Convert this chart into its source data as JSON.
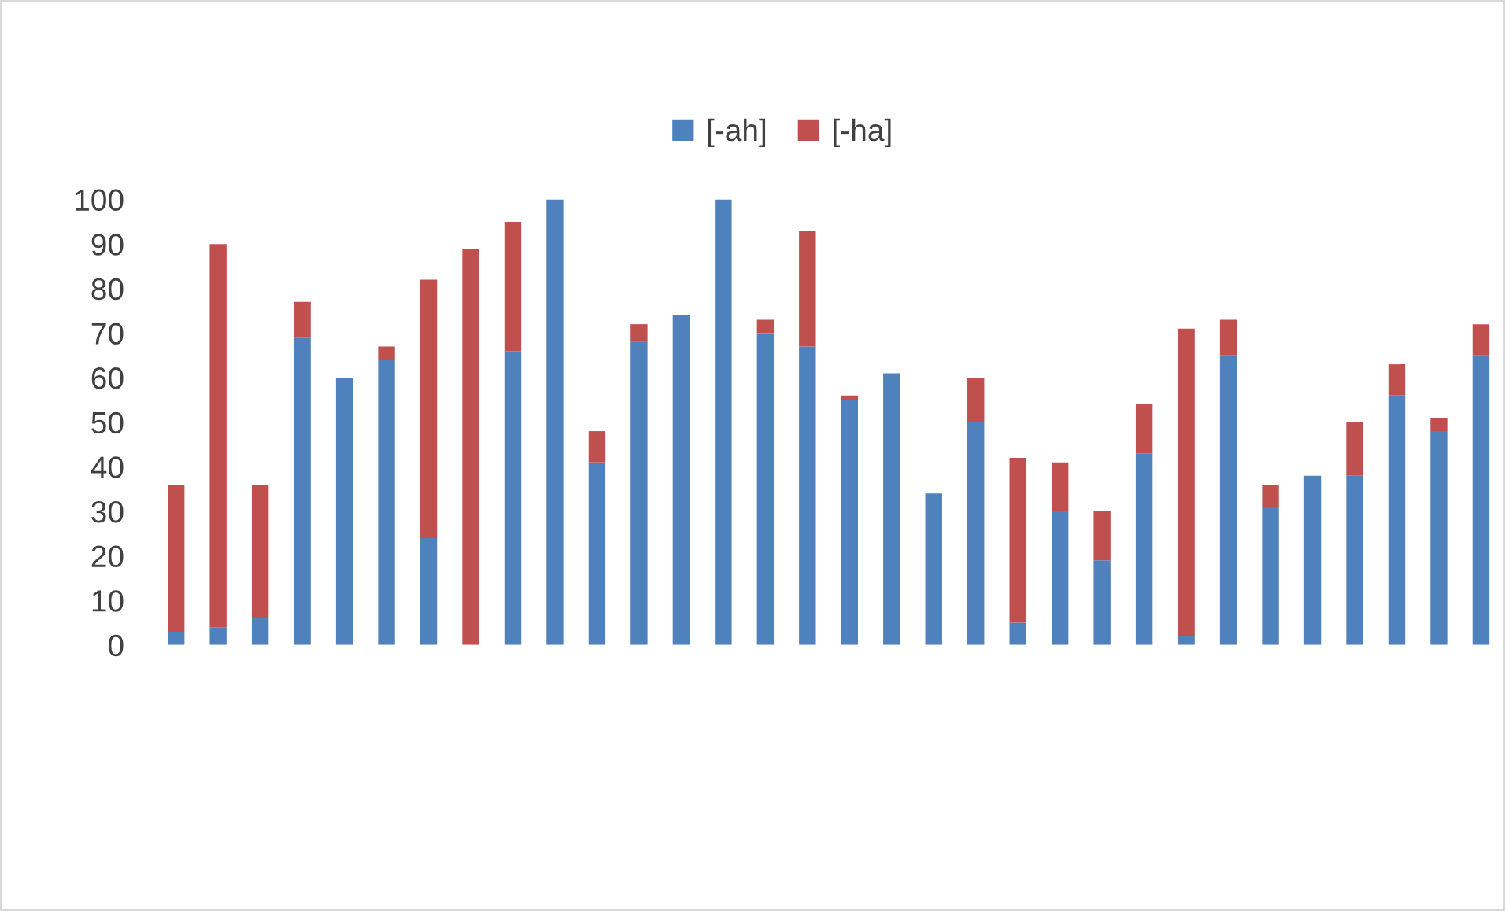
{
  "chart_data": {
    "type": "bar",
    "stacked": true,
    "categories": [
      null,
      null,
      null,
      null,
      null,
      null,
      null,
      null,
      null,
      null,
      null,
      null,
      null,
      null,
      null,
      null,
      null,
      null,
      null,
      null,
      null,
      null,
      null,
      null,
      null,
      null,
      null,
      null,
      null,
      null,
      null,
      null
    ],
    "series": [
      {
        "name": "[-ah]",
        "color": "#4f81bd",
        "values": [
          3,
          4,
          6,
          69,
          60,
          64,
          24,
          0,
          66,
          100,
          41,
          68,
          74,
          100,
          70,
          67,
          55,
          61,
          34,
          50,
          5,
          30,
          19,
          43,
          2,
          65,
          31,
          38,
          38,
          56,
          48,
          65
        ]
      },
      {
        "name": "[-ha]",
        "color": "#c0504d",
        "values": [
          33,
          86,
          30,
          8,
          0,
          3,
          58,
          89,
          29,
          0,
          7,
          4,
          0,
          0,
          3,
          26,
          1,
          0,
          0,
          10,
          37,
          11,
          11,
          11,
          69,
          8,
          5,
          0,
          12,
          7,
          3,
          7
        ]
      }
    ],
    "ylim": [
      0,
      100
    ],
    "yticks": [
      0,
      10,
      20,
      30,
      40,
      50,
      60,
      70,
      80,
      90,
      100
    ],
    "grid": false,
    "legend": "top"
  }
}
